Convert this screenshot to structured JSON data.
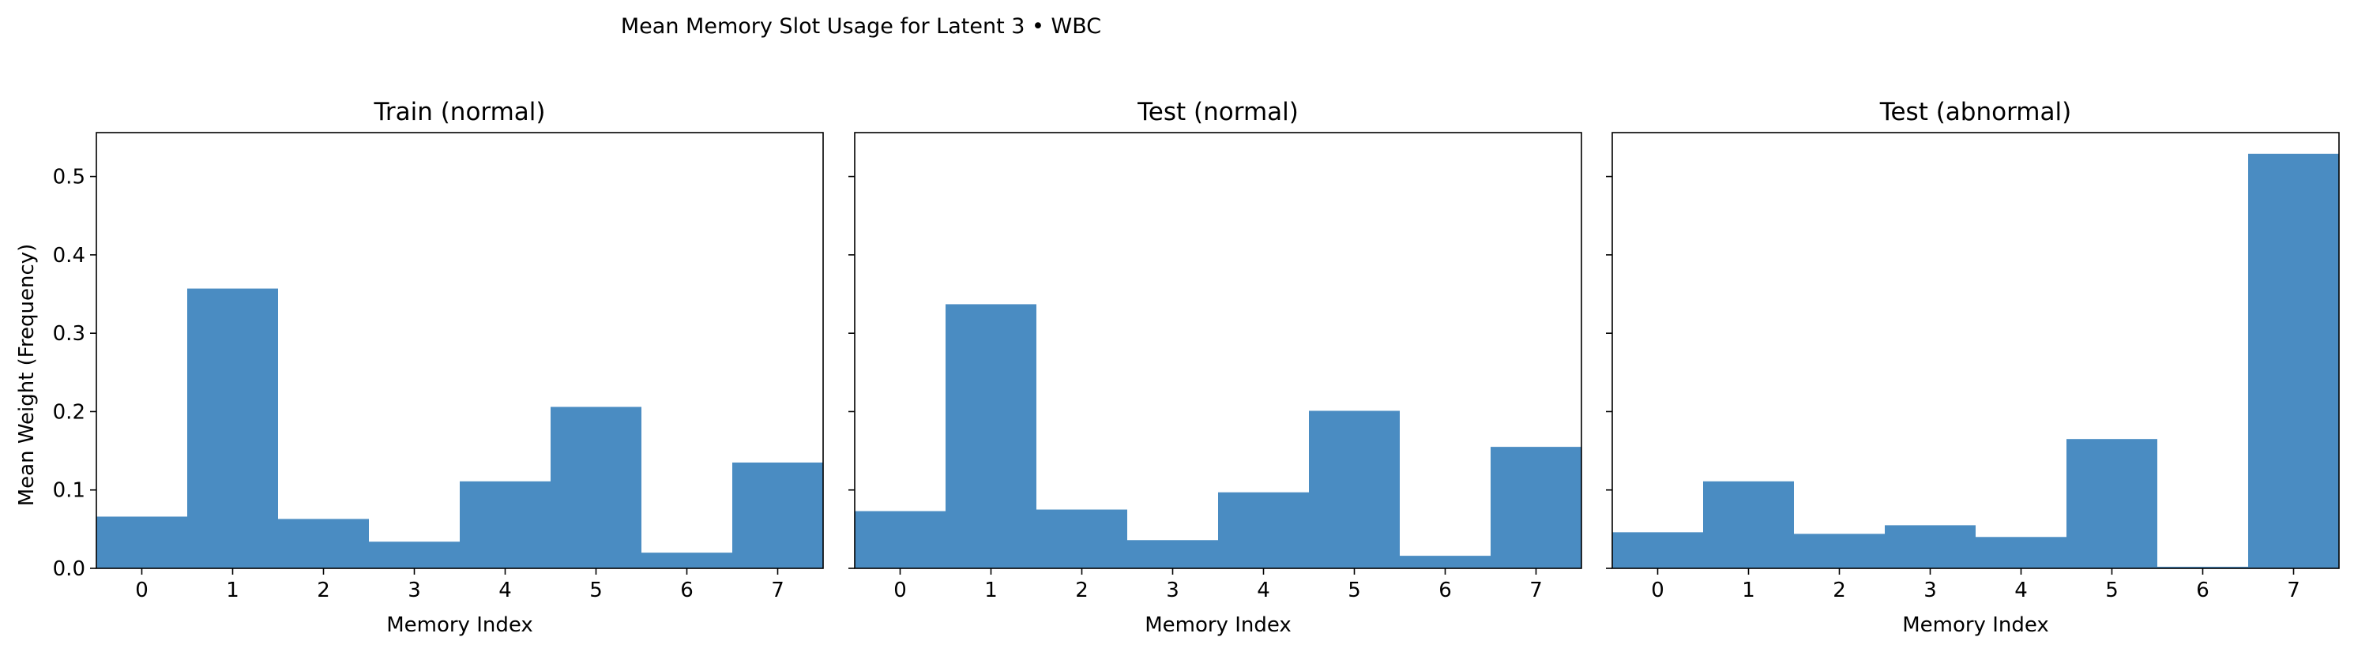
{
  "figure": {
    "suptitle": "Mean Memory Slot Usage for Latent 3 • WBC",
    "ylabel": "Mean Weight (Frequency)",
    "bar_color": "#4a8cc2"
  },
  "chart_data": [
    {
      "type": "bar",
      "title": "Train (normal)",
      "xlabel": "Memory Index",
      "categories": [
        "0",
        "1",
        "2",
        "3",
        "4",
        "5",
        "6",
        "7"
      ],
      "values": [
        0.066,
        0.357,
        0.063,
        0.034,
        0.111,
        0.206,
        0.02,
        0.135
      ],
      "ylim": [
        0,
        0.556
      ],
      "yticks": [
        "0.0",
        "0.1",
        "0.2",
        "0.3",
        "0.4",
        "0.5"
      ]
    },
    {
      "type": "bar",
      "title": "Test (normal)",
      "xlabel": "Memory Index",
      "categories": [
        "0",
        "1",
        "2",
        "3",
        "4",
        "5",
        "6",
        "7"
      ],
      "values": [
        0.073,
        0.337,
        0.075,
        0.036,
        0.097,
        0.201,
        0.016,
        0.155
      ],
      "ylim": [
        0,
        0.556
      ]
    },
    {
      "type": "bar",
      "title": "Test (abnormal)",
      "xlabel": "Memory Index",
      "categories": [
        "0",
        "1",
        "2",
        "3",
        "4",
        "5",
        "6",
        "7"
      ],
      "values": [
        0.046,
        0.111,
        0.044,
        0.055,
        0.04,
        0.165,
        0.002,
        0.529
      ],
      "ylim": [
        0,
        0.556
      ]
    }
  ]
}
